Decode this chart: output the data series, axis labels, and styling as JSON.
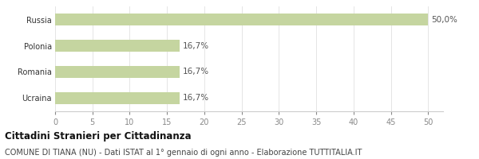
{
  "categories": [
    "Ucraina",
    "Romania",
    "Polonia",
    "Russia"
  ],
  "values": [
    16.7,
    16.7,
    16.7,
    50.0
  ],
  "labels": [
    "16,7%",
    "16,7%",
    "16,7%",
    "50,0%"
  ],
  "bar_color": "#c5d5a0",
  "background_color": "#ffffff",
  "xlim": [
    0,
    52
  ],
  "xticks": [
    0,
    5,
    10,
    15,
    20,
    25,
    30,
    35,
    40,
    45,
    50
  ],
  "title_bold": "Cittadini Stranieri per Cittadinanza",
  "subtitle": "COMUNE DI TIANA (NU) - Dati ISTAT al 1° gennaio di ogni anno - Elaborazione TUTTITALIA.IT",
  "title_fontsize": 8.5,
  "subtitle_fontsize": 7,
  "label_fontsize": 7.5,
  "tick_fontsize": 7,
  "bar_height": 0.45
}
